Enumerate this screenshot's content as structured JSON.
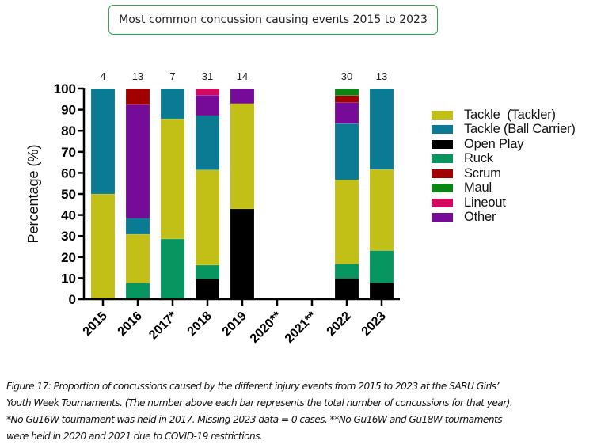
{
  "title_box": "Most common concussion causing events 2015 to 2023",
  "chart_data": {
    "type": "bar",
    "stacked": true,
    "title": "Most common concussion causing events 2015 to 2023",
    "xlabel": "",
    "ylabel": "Percentage (%)",
    "ylim": [
      0,
      100
    ],
    "yticks": [
      0,
      10,
      20,
      30,
      40,
      50,
      60,
      70,
      80,
      90,
      100
    ],
    "grid": false,
    "legend_position": "right",
    "categories": [
      "2015",
      "2016",
      "2017*",
      "2018",
      "2019",
      "2020**",
      "2021**",
      "2022",
      "2023"
    ],
    "totals": [
      "4",
      "13",
      "7",
      "31",
      "14",
      "",
      "",
      "30",
      "13"
    ],
    "series": [
      {
        "name": "Open Play",
        "color": "#000000",
        "values": [
          0,
          0,
          0,
          9.7,
          42.9,
          0,
          0,
          10.0,
          7.7
        ]
      },
      {
        "name": "Ruck",
        "color": "#07965f",
        "values": [
          0,
          7.7,
          28.6,
          6.5,
          0,
          0,
          0,
          6.7,
          15.4
        ]
      },
      {
        "name": "Tackle  (Tackler)",
        "color": "#c2bf17",
        "values": [
          50.0,
          23.1,
          57.1,
          45.2,
          50.0,
          0,
          0,
          40.0,
          38.5
        ]
      },
      {
        "name": "Tackle (Ball Carrier)",
        "color": "#0b7b94",
        "values": [
          50.0,
          7.7,
          14.3,
          25.8,
          0,
          0,
          0,
          26.7,
          38.4
        ]
      },
      {
        "name": "Other",
        "color": "#760b99",
        "values": [
          0,
          53.8,
          0,
          9.7,
          7.1,
          0,
          0,
          10.0,
          0
        ]
      },
      {
        "name": "Scrum",
        "color": "#a20000",
        "values": [
          0,
          7.7,
          0,
          0,
          0,
          0,
          0,
          3.3,
          0
        ]
      },
      {
        "name": "Maul",
        "color": "#0a8413",
        "values": [
          0,
          0,
          0,
          0,
          0,
          0,
          0,
          3.3,
          0
        ]
      },
      {
        "name": "Lineout",
        "color": "#d3095f",
        "values": [
          0,
          0,
          0,
          3.1,
          0,
          0,
          0,
          0,
          0
        ]
      }
    ],
    "legend_order": [
      "Tackle  (Tackler)",
      "Tackle (Ball Carrier)",
      "Open Play",
      "Ruck",
      "Scrum",
      "Maul",
      "Lineout",
      "Other"
    ]
  },
  "legend": [
    {
      "label": "Tackle  (Tackler)",
      "color": "#c2bf17"
    },
    {
      "label": "Tackle (Ball Carrier)",
      "color": "#0b7b94"
    },
    {
      "label": "Open Play",
      "color": "#000000"
    },
    {
      "label": "Ruck",
      "color": "#07965f"
    },
    {
      "label": "Scrum",
      "color": "#a20000"
    },
    {
      "label": "Maul",
      "color": "#0a8413"
    },
    {
      "label": "Lineout",
      "color": "#d3095f"
    },
    {
      "label": "Other",
      "color": "#760b99"
    }
  ],
  "caption": [
    "Figure 17: Proportion of concussions caused by the different injury events from 2015 to 2023 at the SARU Girls’",
    "Youth Week Tournaments. (The number above each bar represents the total number of concussions for that year).",
    "*No Gu16W tournament was held in 2017. Missing 2023 data = 0 cases. **No Gu16W and Gu18W tournaments",
    "were held in 2020 and 2021 due to COVID-19 restrictions."
  ]
}
